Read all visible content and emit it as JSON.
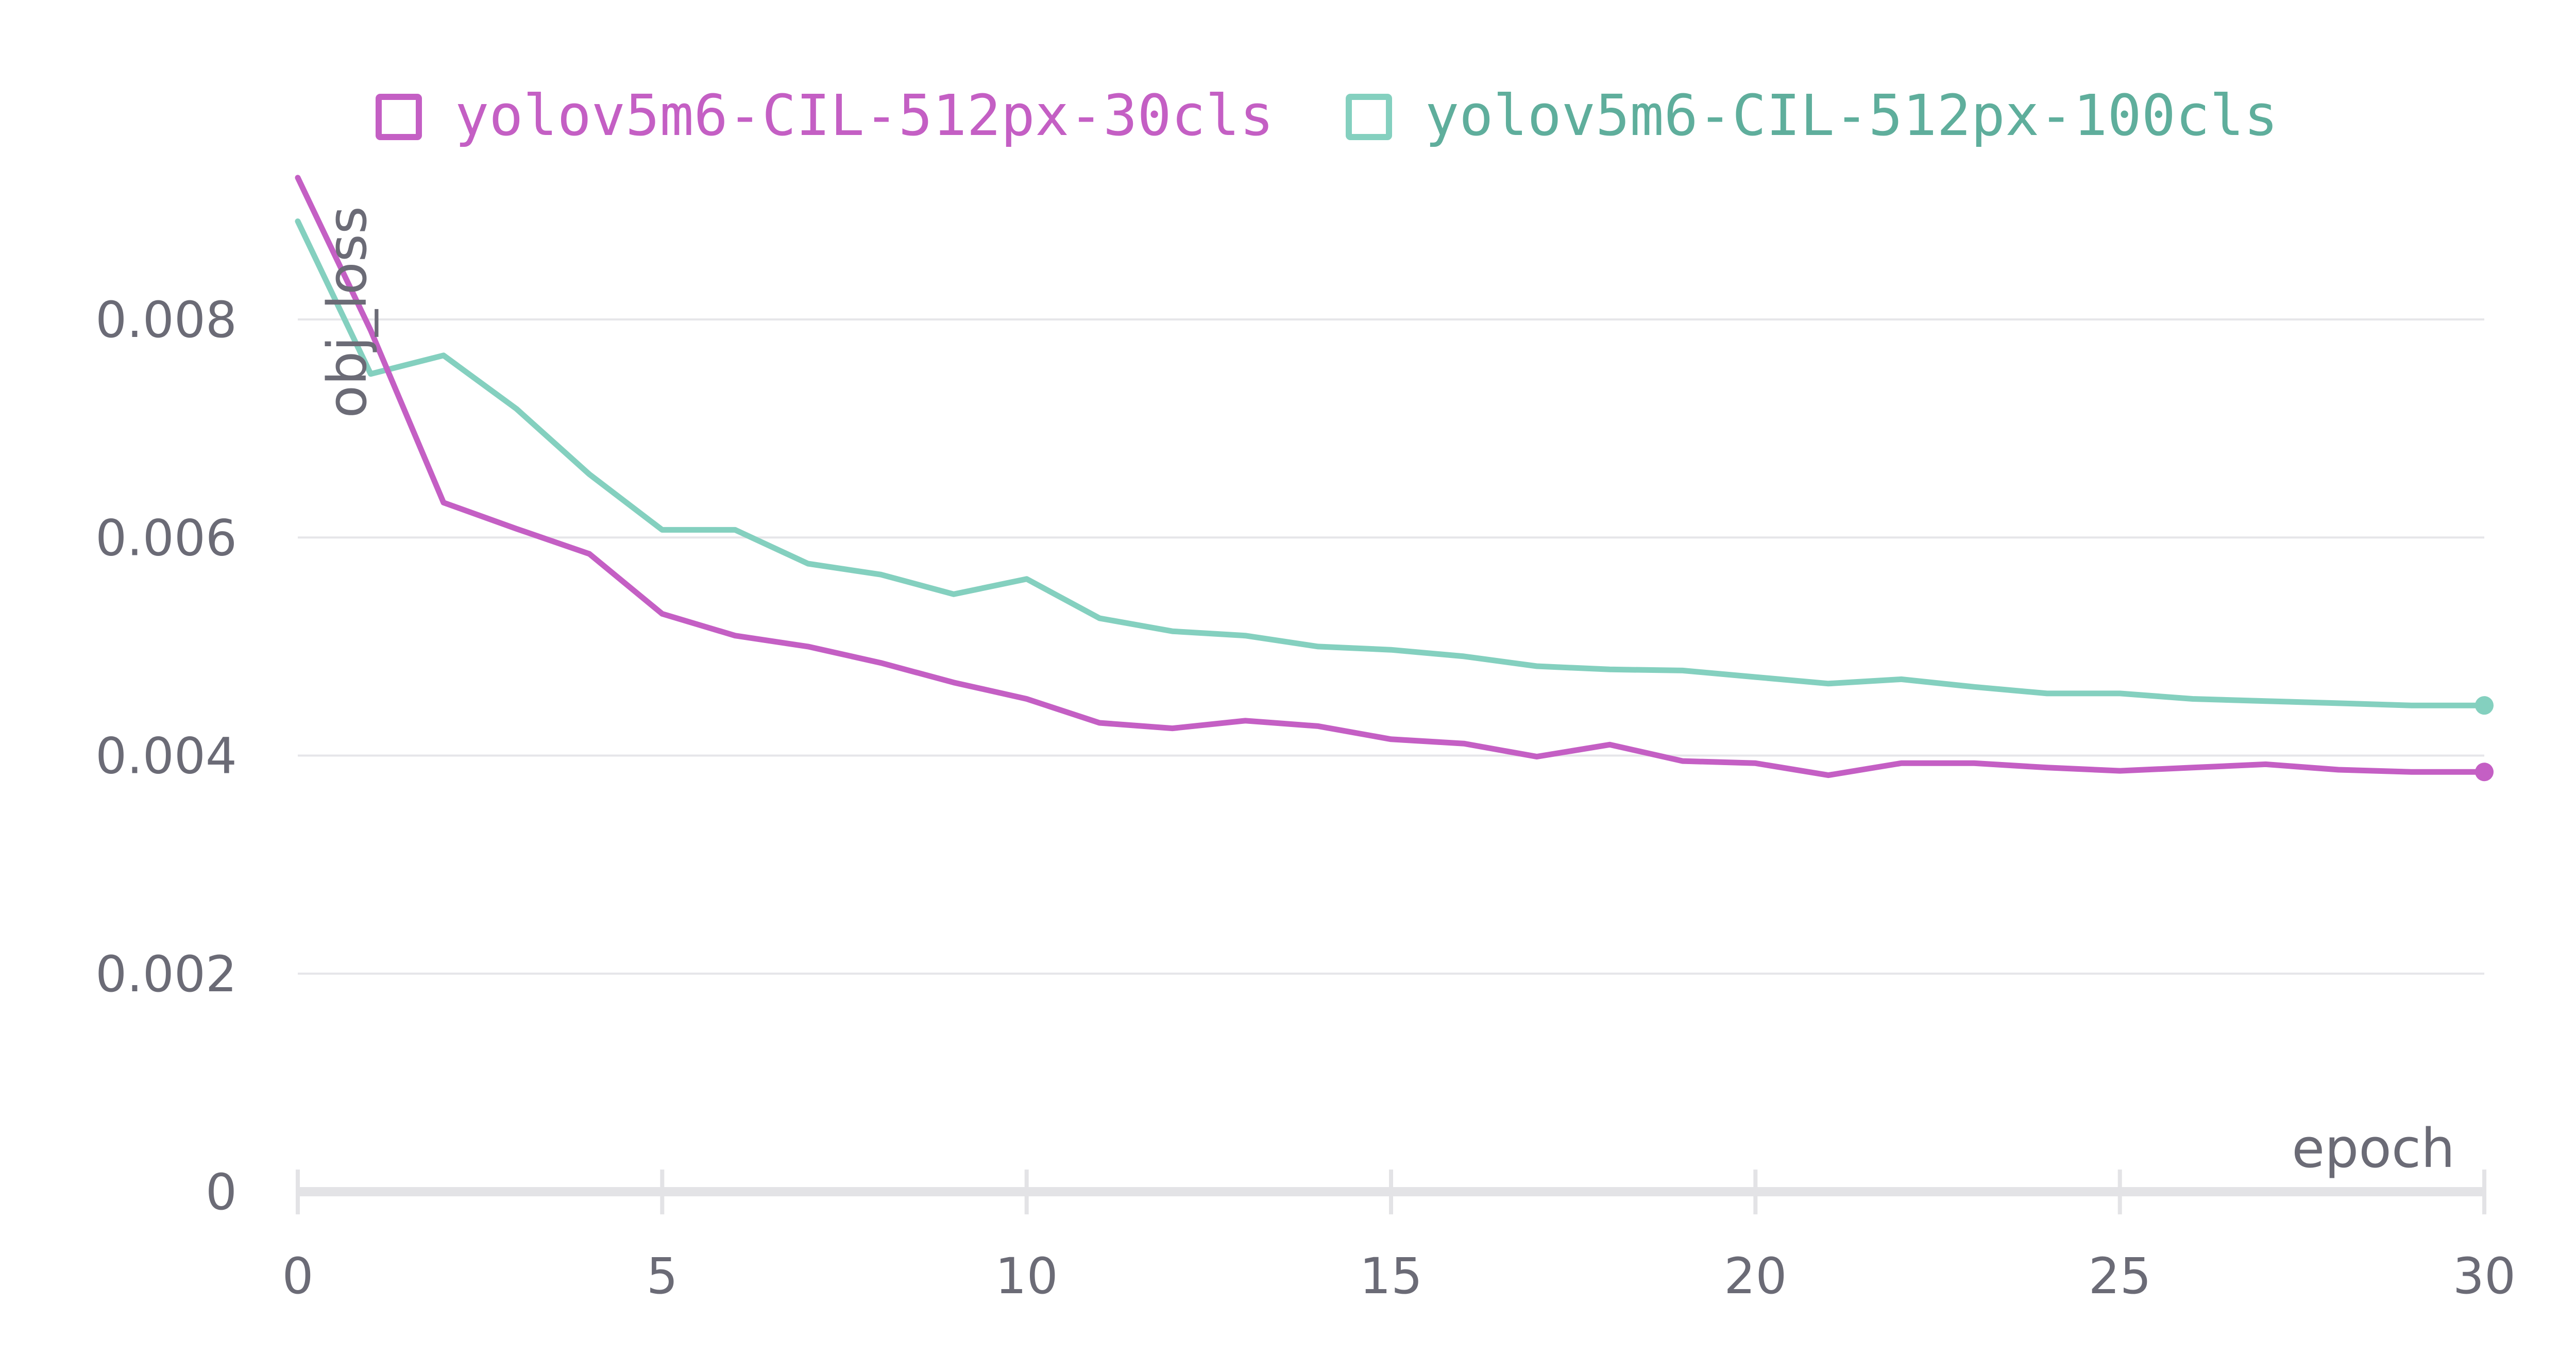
{
  "chart_data": {
    "type": "line",
    "xlabel": "epoch",
    "ylabel": "obj_loss",
    "xlim": [
      0,
      30
    ],
    "ylim": [
      0,
      0.0093
    ],
    "x_ticks": [
      "0",
      "5",
      "10",
      "15",
      "20",
      "25",
      "30"
    ],
    "y_ticks": [
      "0",
      "0.002",
      "0.004",
      "0.006",
      "0.008"
    ],
    "grid": "horizontal",
    "legend_position": "top",
    "x": [
      0,
      1,
      2,
      3,
      4,
      5,
      6,
      7,
      8,
      9,
      10,
      11,
      12,
      13,
      14,
      15,
      16,
      17,
      18,
      19,
      20,
      21,
      22,
      23,
      24,
      25,
      26,
      27,
      28,
      29,
      30
    ],
    "series": [
      {
        "name": "yolov5m6-CIL-512px-30cls",
        "color": "#c45fc4",
        "values": [
          0.0093,
          0.0079,
          0.00632,
          0.00608,
          0.00585,
          0.0053,
          0.0051,
          0.005,
          0.00485,
          0.00467,
          0.00452,
          0.0043,
          0.00425,
          0.00432,
          0.00427,
          0.00415,
          0.00411,
          0.00399,
          0.0041,
          0.00395,
          0.00393,
          0.00382,
          0.00393,
          0.00393,
          0.00389,
          0.00386,
          0.00389,
          0.00392,
          0.00387,
          0.00385,
          0.00385
        ]
      },
      {
        "name": "yolov5m6-CIL-512px-100cls",
        "color": "#84d0bf",
        "values": [
          0.0089,
          0.0075,
          0.00767,
          0.00718,
          0.00658,
          0.00607,
          0.00607,
          0.00576,
          0.00566,
          0.00548,
          0.00562,
          0.00526,
          0.00514,
          0.0051,
          0.005,
          0.00497,
          0.00491,
          0.00482,
          0.00479,
          0.00478,
          0.00472,
          0.00466,
          0.0047,
          0.00463,
          0.00457,
          0.00457,
          0.00452,
          0.0045,
          0.00448,
          0.00446,
          0.00446
        ]
      }
    ]
  }
}
